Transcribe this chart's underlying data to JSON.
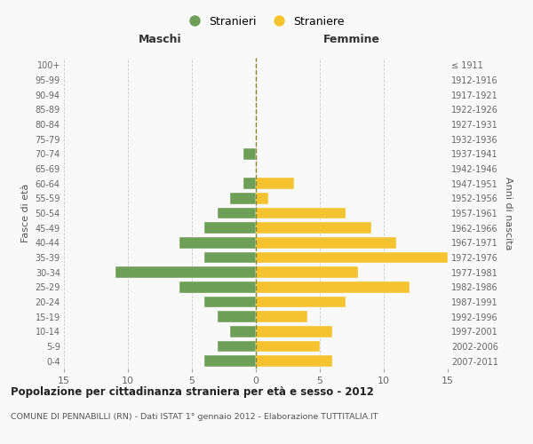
{
  "age_groups": [
    "0-4",
    "5-9",
    "10-14",
    "15-19",
    "20-24",
    "25-29",
    "30-34",
    "35-39",
    "40-44",
    "45-49",
    "50-54",
    "55-59",
    "60-64",
    "65-69",
    "70-74",
    "75-79",
    "80-84",
    "85-89",
    "90-94",
    "95-99",
    "100+"
  ],
  "birth_years": [
    "2007-2011",
    "2002-2006",
    "1997-2001",
    "1992-1996",
    "1987-1991",
    "1982-1986",
    "1977-1981",
    "1972-1976",
    "1967-1971",
    "1962-1966",
    "1957-1961",
    "1952-1956",
    "1947-1951",
    "1942-1946",
    "1937-1941",
    "1932-1936",
    "1927-1931",
    "1922-1926",
    "1917-1921",
    "1912-1916",
    "≤ 1911"
  ],
  "maschi": [
    4,
    3,
    2,
    3,
    4,
    6,
    11,
    4,
    6,
    4,
    3,
    2,
    1,
    0,
    1,
    0,
    0,
    0,
    0,
    0,
    0
  ],
  "femmine": [
    6,
    5,
    6,
    4,
    7,
    12,
    8,
    15,
    11,
    9,
    7,
    1,
    3,
    0,
    0,
    0,
    0,
    0,
    0,
    0,
    0
  ],
  "male_color": "#6e9f57",
  "female_color": "#f5c230",
  "background_color": "#f9f9f9",
  "bar_edge_color": "#f9f9f9",
  "title": "Popolazione per cittadinanza straniera per età e sesso - 2012",
  "subtitle": "COMUNE DI PENNABILLI (RN) - Dati ISTAT 1° gennaio 2012 - Elaborazione TUTTITALIA.IT",
  "xlabel_left": "Maschi",
  "xlabel_right": "Femmine",
  "ylabel_left": "Fasce di età",
  "ylabel_right": "Anni di nascita",
  "legend_male": "Stranieri",
  "legend_female": "Straniere",
  "xlim": 15,
  "bar_height": 0.75
}
